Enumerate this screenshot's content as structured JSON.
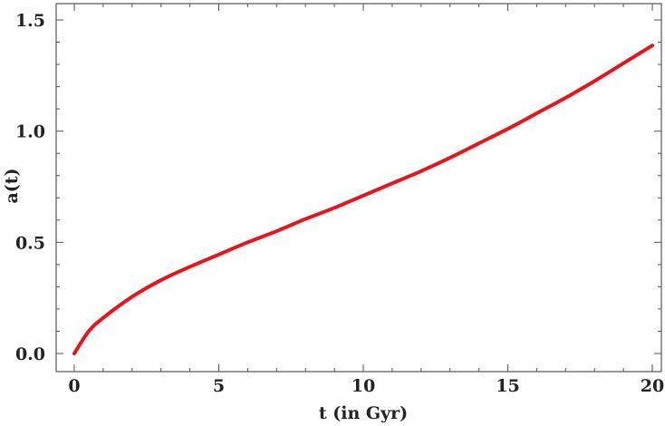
{
  "chart_data": {
    "type": "line",
    "title": "",
    "xlabel": "t (in Gyr)",
    "ylabel": "a(t)",
    "xlim": [
      0,
      20
    ],
    "ylim": [
      0,
      1.5
    ],
    "xticks": [
      "0",
      "5",
      "10",
      "15",
      "20"
    ],
    "yticks": [
      "0.0",
      "0.5",
      "1.0",
      "1.5"
    ],
    "grid": false,
    "series": [
      {
        "color": "#e8141c",
        "x": [
          0,
          0.5,
          1,
          2,
          3,
          4,
          5,
          6,
          7,
          8,
          9,
          10,
          11,
          12,
          13,
          14,
          15,
          16,
          17,
          18,
          19,
          20
        ],
        "y": [
          0,
          0.1,
          0.16,
          0.255,
          0.33,
          0.39,
          0.445,
          0.5,
          0.55,
          0.605,
          0.655,
          0.71,
          0.765,
          0.82,
          0.88,
          0.945,
          1.01,
          1.08,
          1.15,
          1.225,
          1.305,
          1.385
        ]
      }
    ]
  }
}
